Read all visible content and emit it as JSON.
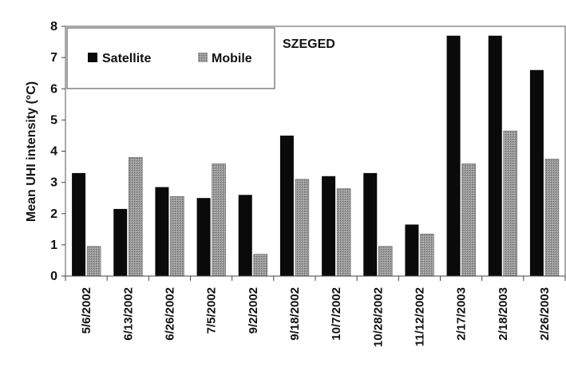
{
  "chart_data": {
    "type": "bar",
    "title": "SZEGED",
    "xlabel": "",
    "ylabel": "Mean UHI intensity (°C)",
    "ylim": [
      0,
      8
    ],
    "yticks": [
      0,
      1,
      2,
      3,
      4,
      5,
      6,
      7,
      8
    ],
    "grid": false,
    "legend_placement": "top-left",
    "categories": [
      "5/6/2002",
      "6/13/2002",
      "6/26/2002",
      "7/5/2002",
      "9/2/2002",
      "9/18/2002",
      "10/7/2002",
      "10/28/2002",
      "11/12/2002",
      "2/17/2003",
      "2/18/2003",
      "2/26/2003"
    ],
    "series": [
      {
        "name": "Satellite",
        "color": "#0a0a0a",
        "values": [
          3.3,
          2.15,
          2.85,
          2.5,
          2.6,
          4.5,
          3.2,
          3.3,
          1.65,
          7.7,
          7.7,
          6.6
        ]
      },
      {
        "name": "Mobile",
        "color": "#8c8c8c",
        "values": [
          0.95,
          3.8,
          2.55,
          3.6,
          0.7,
          3.1,
          2.8,
          0.95,
          1.35,
          3.6,
          4.65,
          3.75
        ]
      }
    ]
  }
}
